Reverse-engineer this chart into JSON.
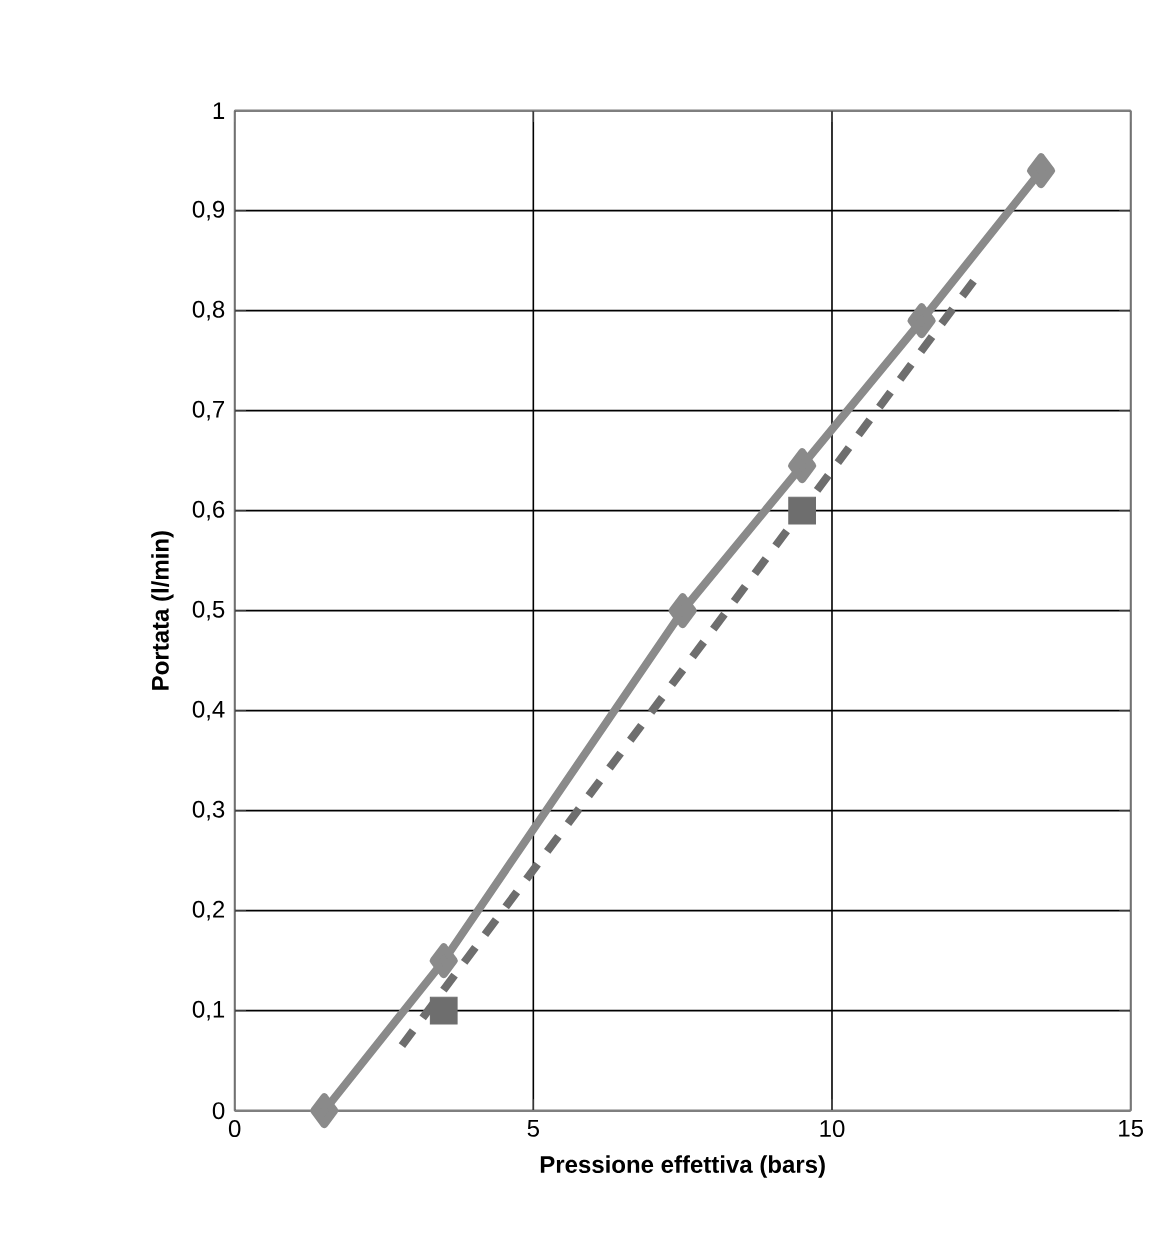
{
  "chart_data": {
    "type": "line",
    "xlabel": "Pressione effettiva (bars)",
    "ylabel": "Portata (l/min)",
    "xlim": [
      0,
      15
    ],
    "xticks": [
      0,
      5,
      10,
      15
    ],
    "ylim": [
      0,
      1
    ],
    "yticks": [
      0,
      {
        "value": 0.1,
        "label": "0,1"
      },
      {
        "value": 0.2,
        "label": "0,2"
      },
      {
        "value": 0.3,
        "label": "0,3"
      },
      {
        "value": 0.4,
        "label": "0,4"
      },
      {
        "value": 0.5,
        "label": "0,5"
      },
      {
        "value": 0.6,
        "label": "0,6"
      },
      {
        "value": 0.7,
        "label": "0,7"
      },
      {
        "value": 0.8,
        "label": "0,8"
      },
      {
        "value": 0.9,
        "label": "0,9"
      },
      1
    ],
    "grid": true,
    "series": [
      {
        "color": "#8a8a8a",
        "marker": "diamond",
        "line_style": "solid",
        "x": [
          1.5,
          3.5,
          7.5,
          9.5,
          11.5,
          13.5
        ],
        "values": [
          0,
          0.15,
          0.5,
          0.645,
          0.79,
          0.94
        ]
      },
      {
        "color": "#6e6e6e",
        "marker": "none",
        "line_style": "dashed",
        "x": [
          2.8,
          12.5
        ],
        "values": [
          0.065,
          0.84
        ]
      },
      {
        "type": "scatter",
        "color": "#6e6e6e",
        "marker": "square",
        "x": [
          3.5,
          9.5
        ],
        "values": [
          0.1,
          0.6
        ]
      }
    ]
  }
}
